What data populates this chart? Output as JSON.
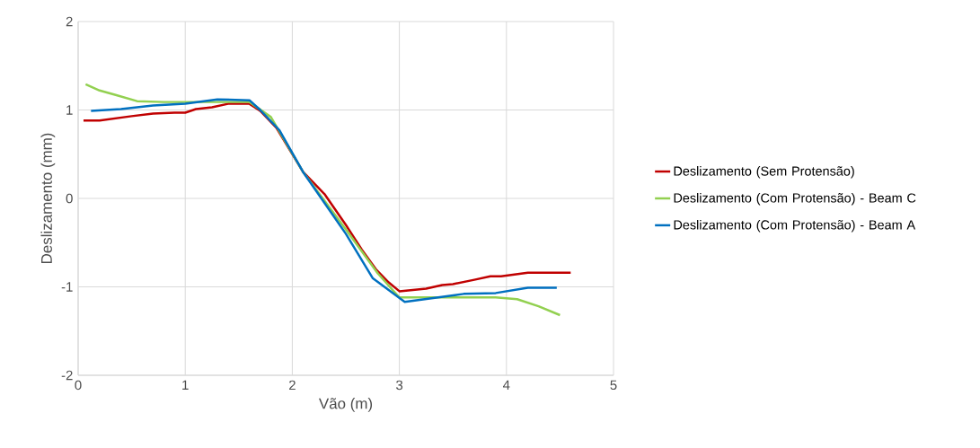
{
  "chart_data": {
    "type": "line",
    "xlabel": "Vão (m)",
    "ylabel": "Deslizamento (mm)",
    "xlim": [
      0,
      5
    ],
    "ylim": [
      -2,
      2
    ],
    "xticks": [
      0,
      1,
      2,
      3,
      4,
      5
    ],
    "yticks": [
      -2,
      -1,
      0,
      1,
      2
    ],
    "grid": true,
    "legend": "right",
    "marker": "none",
    "line_style": "solid",
    "series": [
      {
        "name": "Deslizamento (Sem Protensão)",
        "color": "#c00000",
        "x": [
          0.05,
          0.2,
          0.5,
          0.7,
          0.9,
          1.0,
          1.1,
          1.25,
          1.4,
          1.6,
          1.7,
          1.85,
          2.1,
          2.3,
          2.5,
          2.65,
          2.78,
          2.9,
          3.0,
          3.25,
          3.4,
          3.5,
          3.7,
          3.85,
          3.95,
          4.2,
          4.4,
          4.6
        ],
        "values": [
          0.88,
          0.88,
          0.93,
          0.96,
          0.97,
          0.97,
          1.01,
          1.03,
          1.07,
          1.07,
          0.99,
          0.8,
          0.3,
          0.05,
          -0.3,
          -0.58,
          -0.8,
          -0.95,
          -1.05,
          -1.02,
          -0.98,
          -0.97,
          -0.92,
          -0.88,
          -0.88,
          -0.84,
          -0.84,
          -0.84
        ]
      },
      {
        "name": "Deslizamento (Com Protensão) - Beam C",
        "color": "#92d050",
        "x": [
          0.07,
          0.2,
          0.35,
          0.55,
          0.8,
          1.0,
          1.4,
          1.6,
          1.8,
          2.1,
          2.5,
          2.8,
          3.0,
          3.3,
          3.5,
          3.9,
          4.1,
          4.3,
          4.5
        ],
        "values": [
          1.29,
          1.22,
          1.17,
          1.1,
          1.09,
          1.09,
          1.09,
          1.09,
          0.92,
          0.3,
          -0.35,
          -0.85,
          -1.12,
          -1.12,
          -1.12,
          -1.12,
          -1.14,
          -1.22,
          -1.32
        ]
      },
      {
        "name": "Deslizamento (Com Protensão) - Beam A",
        "color": "#0070c0",
        "x": [
          0.12,
          0.4,
          0.7,
          1.0,
          1.3,
          1.6,
          1.7,
          1.88,
          2.1,
          2.5,
          2.75,
          3.05,
          3.3,
          3.6,
          3.9,
          4.2,
          4.47
        ],
        "values": [
          0.99,
          1.01,
          1.05,
          1.07,
          1.12,
          1.11,
          1.0,
          0.77,
          0.3,
          -0.4,
          -0.9,
          -1.17,
          -1.13,
          -1.08,
          -1.07,
          -1.01,
          -1.01
        ]
      }
    ]
  }
}
